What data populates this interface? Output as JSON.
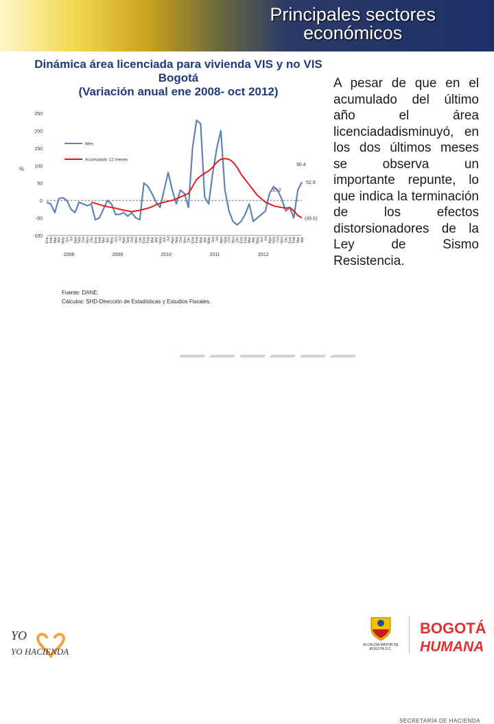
{
  "header": {
    "title_line1": "Principales sectores",
    "title_line2": "económicos"
  },
  "chart_title": {
    "line1": "Dinámica área licenciada para vivienda VIS y no VIS",
    "line2": "Bogotá",
    "line3": "(Variación anual ene 2008- oct 2012)"
  },
  "side_text": "A pesar de que en el acumulado del último año el área licenciadadisminuyó, en los dos últimos meses se observa un importante repunte, lo que indica la terminación de los efectos distorsionadores de la Ley de Sismo Resistencia.",
  "source": {
    "line1": "Fuente: DANE.",
    "line2": "Cálculos: SHD-Dirección de Estadísticas y Estudios Fiscales."
  },
  "logos": {
    "yo_hacienda": "YO HACIENDA",
    "alcaldia": "ALCALDÍA MAYOR DE BOGOTÁ D.C.",
    "bogota": "BOGOTÁ",
    "humana": "HUMANA",
    "secretaria": "SECRETARÍA DE HACIENDA"
  },
  "chart_data": {
    "type": "line",
    "ylabel": "%",
    "ylim": [
      -100,
      250
    ],
    "yticks": [
      250,
      200,
      150,
      100,
      50,
      0,
      -50,
      -100
    ],
    "month_labels": [
      "Ene",
      "Feb",
      "Mar",
      "Abr",
      "May",
      "Jun",
      "Jul",
      "Ago",
      "Sep",
      "Oct",
      "Nov",
      "Dic"
    ],
    "year_labels": [
      "2008",
      "2009",
      "2010",
      "2011",
      "2012"
    ],
    "series": [
      {
        "name": "Mes",
        "color": "#5b84b5",
        "values": [
          -5,
          -10,
          -35,
          5,
          8,
          0,
          -25,
          -35,
          -5,
          -10,
          -15,
          -10,
          -55,
          -50,
          -25,
          0,
          -10,
          -40,
          -40,
          -35,
          -45,
          -35,
          -50,
          -55,
          50,
          40,
          20,
          -5,
          -20,
          30,
          80,
          30,
          -10,
          30,
          20,
          -20,
          150,
          230,
          220,
          10,
          -10,
          80,
          150,
          200,
          30,
          -30,
          -60,
          -70,
          -60,
          -40,
          -10,
          -60,
          -50,
          -40,
          -30,
          20,
          40,
          30,
          5,
          -30,
          -20,
          -50,
          30,
          52.9
        ]
      },
      {
        "name": "Acumulado 12 meses",
        "color": "#e41a1c",
        "values": [
          null,
          null,
          null,
          null,
          null,
          null,
          null,
          null,
          null,
          null,
          null,
          -5,
          -8,
          -12,
          -15,
          -18,
          -20,
          -22,
          -25,
          -28,
          -30,
          -32,
          -30,
          -28,
          -25,
          -22,
          -18,
          -12,
          -8,
          -5,
          -2,
          0,
          5,
          10,
          15,
          20,
          40,
          60,
          70,
          78,
          85,
          95,
          110,
          118,
          120,
          118,
          110,
          95,
          75,
          60,
          45,
          30,
          15,
          5,
          -5,
          -10,
          -15,
          -18,
          -20,
          -22,
          -20,
          -30,
          -43,
          -49.6
        ]
      }
    ],
    "annotations": [
      {
        "text": "90.4",
        "x_index": 63,
        "y": 90.4
      },
      {
        "text": "52.9",
        "x_index": 63,
        "y": 52.9
      },
      {
        "text": "10.2",
        "x_index": 60,
        "y": 10.2
      },
      {
        "text": "(49.6)",
        "x_index": 63,
        "y": -49.6
      }
    ]
  }
}
